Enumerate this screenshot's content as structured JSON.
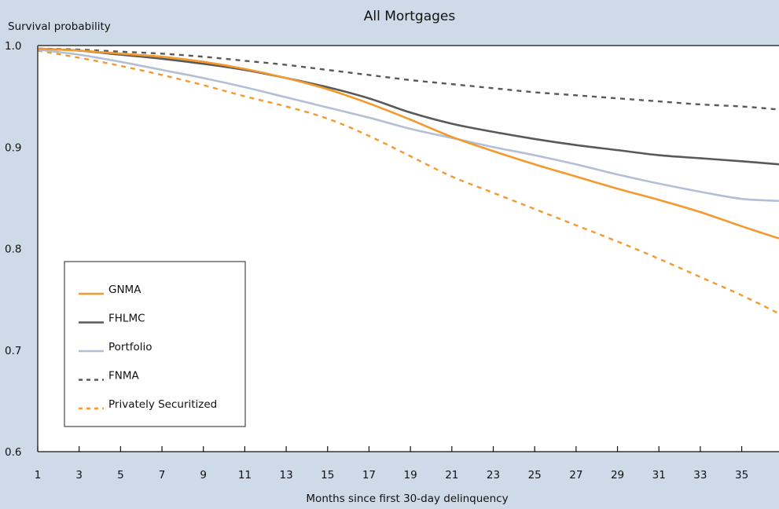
{
  "chart_data": {
    "type": "line",
    "title": "All Mortgages",
    "ylabel": "Survival probability",
    "xlabel": "Months since first 30-day delinquency",
    "xlim": [
      1,
      36.8
    ],
    "ylim": [
      0.6,
      1.0
    ],
    "x_ticks": [
      1,
      3,
      5,
      7,
      9,
      11,
      13,
      15,
      17,
      19,
      21,
      23,
      25,
      27,
      29,
      31,
      33,
      35
    ],
    "x_tick_labels": [
      "1",
      "3",
      "5",
      "7",
      "9",
      "11",
      "13",
      "15",
      "17",
      "19",
      "21",
      "23",
      "25",
      "27",
      "29",
      "31",
      "33",
      "35"
    ],
    "y_ticks": [
      0.6,
      0.7,
      0.8,
      0.9,
      1.0
    ],
    "y_tick_labels": [
      "0.6",
      "0.7",
      "0.8",
      "0.9",
      "1.0"
    ],
    "grid": false,
    "legend_position": "bottom-left",
    "series": [
      {
        "name": "GNMA",
        "color": "#f29a2e",
        "dash": "solid",
        "x": [
          1,
          3,
          5,
          7,
          9,
          11,
          13,
          15,
          17,
          19,
          21,
          23,
          25,
          27,
          29,
          31,
          33,
          35,
          36.8
        ],
        "values": [
          0.997,
          0.995,
          0.992,
          0.989,
          0.984,
          0.977,
          0.968,
          0.957,
          0.943,
          0.927,
          0.91,
          0.896,
          0.883,
          0.871,
          0.859,
          0.848,
          0.836,
          0.822,
          0.81
        ]
      },
      {
        "name": "FHLMC",
        "color": "#595959",
        "dash": "solid",
        "x": [
          1,
          3,
          5,
          7,
          9,
          11,
          13,
          15,
          17,
          19,
          21,
          23,
          25,
          27,
          29,
          31,
          33,
          35,
          36.8
        ],
        "values": [
          0.997,
          0.995,
          0.991,
          0.987,
          0.982,
          0.976,
          0.968,
          0.959,
          0.948,
          0.934,
          0.923,
          0.915,
          0.908,
          0.902,
          0.897,
          0.892,
          0.889,
          0.886,
          0.883
        ]
      },
      {
        "name": "Portfolio",
        "color": "#b4bfd6",
        "dash": "solid",
        "x": [
          1,
          3,
          5,
          7,
          9,
          11,
          13,
          15,
          17,
          19,
          21,
          23,
          25,
          27,
          29,
          31,
          33,
          35,
          36.8
        ],
        "values": [
          0.996,
          0.991,
          0.984,
          0.976,
          0.968,
          0.959,
          0.949,
          0.939,
          0.929,
          0.918,
          0.909,
          0.9,
          0.892,
          0.883,
          0.873,
          0.864,
          0.856,
          0.849,
          0.847
        ]
      },
      {
        "name": "FNMA",
        "color": "#595959",
        "dash": "dashed",
        "x": [
          1,
          3,
          5,
          7,
          9,
          11,
          13,
          15,
          17,
          19,
          21,
          23,
          25,
          27,
          29,
          31,
          33,
          35,
          36.8
        ],
        "values": [
          0.997,
          0.996,
          0.994,
          0.992,
          0.989,
          0.985,
          0.981,
          0.976,
          0.971,
          0.966,
          0.962,
          0.958,
          0.954,
          0.951,
          0.948,
          0.945,
          0.942,
          0.94,
          0.937
        ]
      },
      {
        "name": "Privately Securitized",
        "color": "#f29a2e",
        "dash": "dashed",
        "x": [
          1,
          3,
          5,
          7,
          9,
          11,
          13,
          15,
          17,
          19,
          21,
          23,
          25,
          27,
          29,
          31,
          33,
          35,
          36.8
        ],
        "values": [
          0.995,
          0.988,
          0.98,
          0.971,
          0.961,
          0.95,
          0.94,
          0.928,
          0.911,
          0.891,
          0.871,
          0.855,
          0.839,
          0.823,
          0.807,
          0.79,
          0.772,
          0.754,
          0.736
        ]
      }
    ]
  }
}
